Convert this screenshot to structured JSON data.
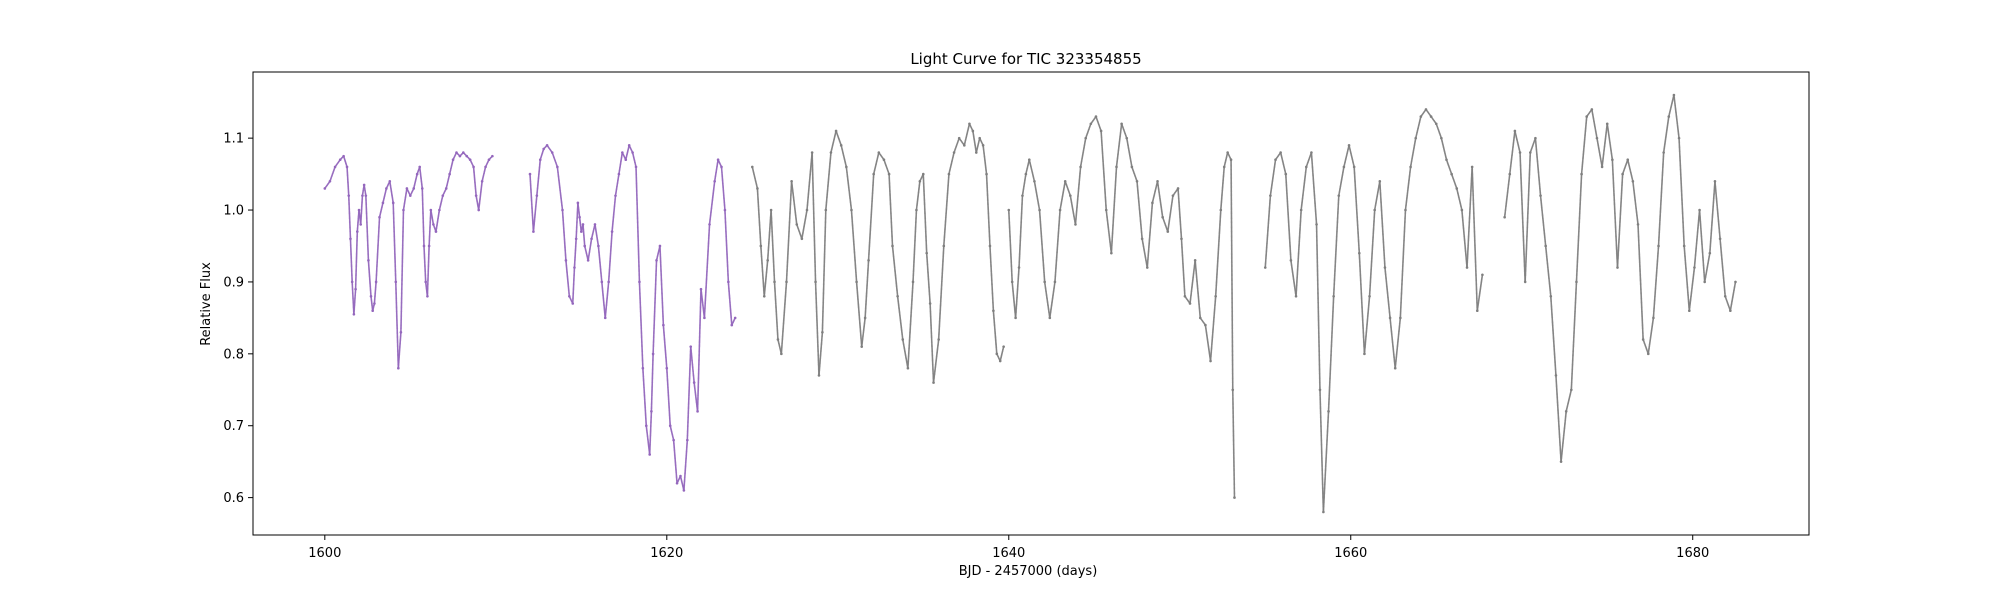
{
  "figure": {
    "title": "Light Curve for TIC 323354855",
    "xlabel": "BJD - 2457000 (days)",
    "ylabel": "Relative Flux"
  },
  "colors": {
    "sector_a": "#9467bd",
    "sector_b": "#7f7f7f",
    "axes": "#000000",
    "background": "#ffffff"
  },
  "chart_data": {
    "type": "scatter",
    "title": "Light Curve for TIC 323354855",
    "xlabel": "BJD - 2457000 (days)",
    "ylabel": "Relative Flux",
    "xlim": [
      1595.8,
      1686.8
    ],
    "ylim": [
      0.548,
      1.192
    ],
    "xticks": [
      1600,
      1620,
      1640,
      1660,
      1680
    ],
    "xtick_labels": [
      "1600",
      "1620",
      "1640",
      "1660",
      "1680"
    ],
    "yticks": [
      0.6,
      0.7,
      0.8,
      0.9,
      1.0,
      1.1
    ],
    "ytick_labels": [
      "0.6",
      "0.7",
      "0.8",
      "0.9",
      "1.0",
      "1.1"
    ],
    "grid": false,
    "legend": "none",
    "series": [
      {
        "color": "#9467bd",
        "segments": [
          {
            "x": [
              1600.0,
              1600.3,
              1600.6,
              1600.9,
              1601.1,
              1601.3,
              1601.4,
              1601.5,
              1601.6,
              1601.7,
              1601.8,
              1601.9,
              1602.0,
              1602.1,
              1602.2,
              1602.3,
              1602.4,
              1602.55,
              1602.7,
              1602.8,
              1602.9,
              1603.0,
              1603.2,
              1603.4,
              1603.6,
              1603.8,
              1604.0,
              1604.15,
              1604.3,
              1604.45,
              1604.6,
              1604.8,
              1605.0,
              1605.2,
              1605.4,
              1605.55,
              1605.7,
              1605.8,
              1605.9,
              1606.0,
              1606.1,
              1606.2,
              1606.35,
              1606.5,
              1606.7,
              1606.9,
              1607.1,
              1607.3,
              1607.5,
              1607.7,
              1607.9,
              1608.1,
              1608.3,
              1608.5,
              1608.7,
              1608.85,
              1609.0,
              1609.2,
              1609.4,
              1609.6,
              1609.8
            ],
            "y": [
              1.03,
              1.04,
              1.06,
              1.07,
              1.075,
              1.06,
              1.02,
              0.96,
              0.9,
              0.855,
              0.89,
              0.97,
              1.0,
              0.98,
              1.02,
              1.035,
              1.02,
              0.93,
              0.88,
              0.86,
              0.87,
              0.9,
              0.99,
              1.01,
              1.03,
              1.04,
              1.01,
              0.9,
              0.78,
              0.83,
              1.0,
              1.03,
              1.02,
              1.03,
              1.05,
              1.06,
              1.03,
              0.95,
              0.9,
              0.88,
              0.95,
              1.0,
              0.98,
              0.97,
              1.0,
              1.02,
              1.03,
              1.05,
              1.07,
              1.08,
              1.075,
              1.08,
              1.075,
              1.07,
              1.06,
              1.02,
              1.0,
              1.04,
              1.06,
              1.07,
              1.075
            ]
          },
          {
            "x": [
              1612.0,
              1612.2,
              1612.4,
              1612.6,
              1612.8,
              1613.0,
              1613.3,
              1613.6,
              1613.9,
              1614.1,
              1614.3,
              1614.5,
              1614.6,
              1614.7,
              1614.8,
              1614.9,
              1615.0,
              1615.1,
              1615.2,
              1615.4,
              1615.6,
              1615.8,
              1616.0,
              1616.2,
              1616.4,
              1616.6,
              1616.8,
              1617.0,
              1617.2,
              1617.4,
              1617.6,
              1617.8,
              1618.0,
              1618.2,
              1618.4,
              1618.6,
              1618.8,
              1619.0,
              1619.1,
              1619.2,
              1619.4,
              1619.6,
              1619.8,
              1620.0,
              1620.2,
              1620.4,
              1620.6,
              1620.8,
              1621.0,
              1621.2,
              1621.4,
              1621.6,
              1621.8,
              1622.0,
              1622.2,
              1622.5,
              1622.8,
              1623.0,
              1623.2,
              1623.4,
              1623.6,
              1623.8,
              1624.0
            ],
            "y": [
              1.05,
              0.97,
              1.02,
              1.07,
              1.085,
              1.09,
              1.08,
              1.06,
              1.0,
              0.93,
              0.88,
              0.87,
              0.92,
              0.96,
              1.01,
              0.99,
              0.97,
              0.98,
              0.95,
              0.93,
              0.96,
              0.98,
              0.95,
              0.9,
              0.85,
              0.9,
              0.97,
              1.02,
              1.05,
              1.08,
              1.07,
              1.09,
              1.08,
              1.06,
              0.9,
              0.78,
              0.7,
              0.66,
              0.72,
              0.8,
              0.93,
              0.95,
              0.84,
              0.78,
              0.7,
              0.68,
              0.62,
              0.63,
              0.61,
              0.68,
              0.81,
              0.76,
              0.72,
              0.89,
              0.85,
              0.98,
              1.04,
              1.07,
              1.06,
              1.0,
              0.9,
              0.84,
              0.85
            ]
          }
        ]
      },
      {
        "color": "#7f7f7f",
        "segments": [
          {
            "x": [
              1625.0,
              1625.3,
              1625.5,
              1625.7,
              1625.9,
              1626.1,
              1626.3,
              1626.5,
              1626.7,
              1627.0,
              1627.3,
              1627.6,
              1627.9,
              1628.2,
              1628.5,
              1628.7,
              1628.9,
              1629.1,
              1629.3,
              1629.6,
              1629.9,
              1630.2,
              1630.5,
              1630.8,
              1631.1,
              1631.4,
              1631.6,
              1631.8,
              1632.1,
              1632.4,
              1632.7,
              1633.0,
              1633.2,
              1633.5,
              1633.8,
              1634.1,
              1634.4,
              1634.6,
              1634.8,
              1635.0,
              1635.2,
              1635.4,
              1635.6,
              1635.9,
              1636.2,
              1636.5,
              1636.8,
              1637.1,
              1637.4,
              1637.7,
              1637.9,
              1638.1,
              1638.3,
              1638.5,
              1638.7,
              1638.9,
              1639.1,
              1639.3,
              1639.5,
              1639.7
            ],
            "y": [
              1.06,
              1.03,
              0.95,
              0.88,
              0.93,
              1.0,
              0.9,
              0.82,
              0.8,
              0.9,
              1.04,
              0.98,
              0.96,
              1.0,
              1.08,
              0.9,
              0.77,
              0.83,
              1.0,
              1.08,
              1.11,
              1.09,
              1.06,
              1.0,
              0.9,
              0.81,
              0.85,
              0.93,
              1.05,
              1.08,
              1.07,
              1.05,
              0.95,
              0.88,
              0.82,
              0.78,
              0.9,
              1.0,
              1.04,
              1.05,
              0.94,
              0.87,
              0.76,
              0.82,
              0.95,
              1.05,
              1.08,
              1.1,
              1.09,
              1.12,
              1.11,
              1.08,
              1.1,
              1.09,
              1.05,
              0.95,
              0.86,
              0.8,
              0.79,
              0.81
            ]
          },
          {
            "x": [
              1640.0,
              1640.2,
              1640.4,
              1640.6,
              1640.8,
              1641.0,
              1641.2,
              1641.5,
              1641.8,
              1642.1,
              1642.4,
              1642.7,
              1643.0,
              1643.3,
              1643.6,
              1643.9,
              1644.2,
              1644.5,
              1644.8,
              1645.1,
              1645.4,
              1645.7,
              1646.0,
              1646.3,
              1646.6,
              1646.9,
              1647.2,
              1647.5,
              1647.8,
              1648.1,
              1648.4,
              1648.7,
              1649.0,
              1649.3,
              1649.6,
              1649.9,
              1650.1,
              1650.3,
              1650.6,
              1650.9,
              1651.2,
              1651.5,
              1651.8,
              1652.1,
              1652.4,
              1652.6,
              1652.8,
              1653.0,
              1653.1,
              1653.2
            ],
            "y": [
              1.0,
              0.9,
              0.85,
              0.92,
              1.02,
              1.05,
              1.07,
              1.04,
              1.0,
              0.9,
              0.85,
              0.9,
              1.0,
              1.04,
              1.02,
              0.98,
              1.06,
              1.1,
              1.12,
              1.13,
              1.11,
              1.0,
              0.94,
              1.06,
              1.12,
              1.1,
              1.06,
              1.04,
              0.96,
              0.92,
              1.01,
              1.04,
              0.99,
              0.97,
              1.02,
              1.03,
              0.96,
              0.88,
              0.87,
              0.93,
              0.85,
              0.84,
              0.79,
              0.88,
              1.0,
              1.06,
              1.08,
              1.07,
              0.75,
              0.6
            ]
          },
          {
            "x": [
              1655.0,
              1655.3,
              1655.6,
              1655.9,
              1656.2,
              1656.5,
              1656.8,
              1657.1,
              1657.4,
              1657.7,
              1658.0,
              1658.2,
              1658.4,
              1658.7,
              1659.0,
              1659.3,
              1659.6,
              1659.9,
              1660.2,
              1660.5,
              1660.8,
              1661.1,
              1661.4,
              1661.7,
              1662.0,
              1662.3,
              1662.6,
              1662.9,
              1663.2,
              1663.5,
              1663.8,
              1664.1,
              1664.4,
              1664.7,
              1665.0,
              1665.3,
              1665.6,
              1665.9,
              1666.2,
              1666.5,
              1666.8,
              1667.1,
              1667.4,
              1667.7
            ],
            "y": [
              0.92,
              1.02,
              1.07,
              1.08,
              1.05,
              0.93,
              0.88,
              1.0,
              1.06,
              1.08,
              0.98,
              0.75,
              0.58,
              0.72,
              0.88,
              1.02,
              1.06,
              1.09,
              1.06,
              0.94,
              0.8,
              0.88,
              1.0,
              1.04,
              0.92,
              0.85,
              0.78,
              0.85,
              1.0,
              1.06,
              1.1,
              1.13,
              1.14,
              1.13,
              1.12,
              1.1,
              1.07,
              1.05,
              1.03,
              1.0,
              0.92,
              1.06,
              0.86,
              0.91
            ]
          },
          {
            "x": [
              1669.0,
              1669.3,
              1669.6,
              1669.9,
              1670.2,
              1670.5,
              1670.8,
              1671.1,
              1671.4,
              1671.7,
              1672.0,
              1672.3,
              1672.6,
              1672.9,
              1673.2,
              1673.5,
              1673.8,
              1674.1,
              1674.4,
              1674.7,
              1675.0,
              1675.3,
              1675.6,
              1675.9,
              1676.2,
              1676.5,
              1676.8,
              1677.1,
              1677.4,
              1677.7,
              1678.0,
              1678.3,
              1678.6,
              1678.9,
              1679.2,
              1679.5,
              1679.8,
              1680.1,
              1680.4,
              1680.7,
              1681.0,
              1681.3,
              1681.6,
              1681.9,
              1682.2,
              1682.5
            ],
            "y": [
              0.99,
              1.05,
              1.11,
              1.08,
              0.9,
              1.08,
              1.1,
              1.02,
              0.95,
              0.88,
              0.77,
              0.65,
              0.72,
              0.75,
              0.9,
              1.05,
              1.13,
              1.14,
              1.1,
              1.06,
              1.12,
              1.07,
              0.92,
              1.05,
              1.07,
              1.04,
              0.98,
              0.82,
              0.8,
              0.85,
              0.95,
              1.08,
              1.13,
              1.16,
              1.1,
              0.95,
              0.86,
              0.92,
              1.0,
              0.9,
              0.94,
              1.04,
              0.96,
              0.88,
              0.86,
              0.9
            ]
          }
        ]
      }
    ]
  }
}
